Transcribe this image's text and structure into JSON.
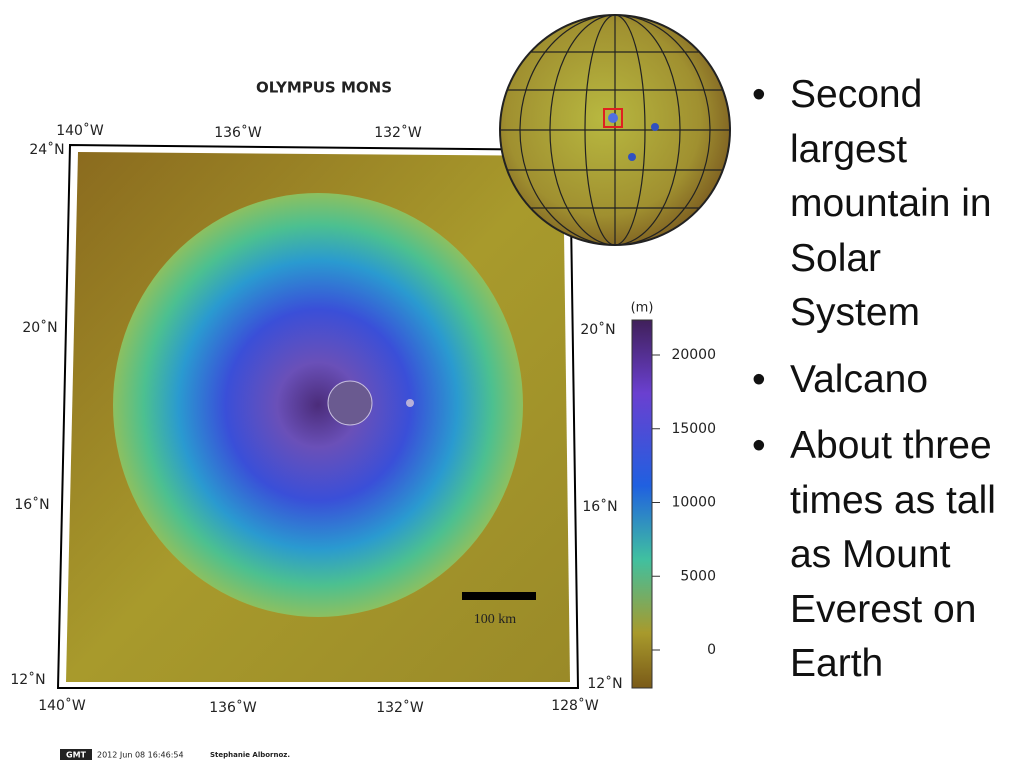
{
  "map": {
    "title": "OLYMPUS MONS",
    "top_labels": [
      "140˚W",
      "136˚W",
      "132˚W"
    ],
    "bottom_labels": [
      "140˚W",
      "136˚W",
      "132˚W",
      "128˚W"
    ],
    "left_labels": [
      "24˚N",
      "20˚N",
      "16˚N",
      "12˚N"
    ],
    "right_labels": [
      "20˚N",
      "16˚N",
      "12˚N"
    ],
    "colorbar": {
      "unit": "(m)",
      "ticks": [
        20000,
        15000,
        10000,
        5000,
        0
      ]
    },
    "scale_bar": "100 km",
    "footer": {
      "logo": "GMT",
      "timestamp": "2012 Jun 08 16:46:54",
      "author": "Stephanie Albornoz."
    }
  },
  "bullets": [
    "Second largest mountain in Solar System",
    "Valcano",
    "About three times as tall as Mount Everest on Earth"
  ]
}
